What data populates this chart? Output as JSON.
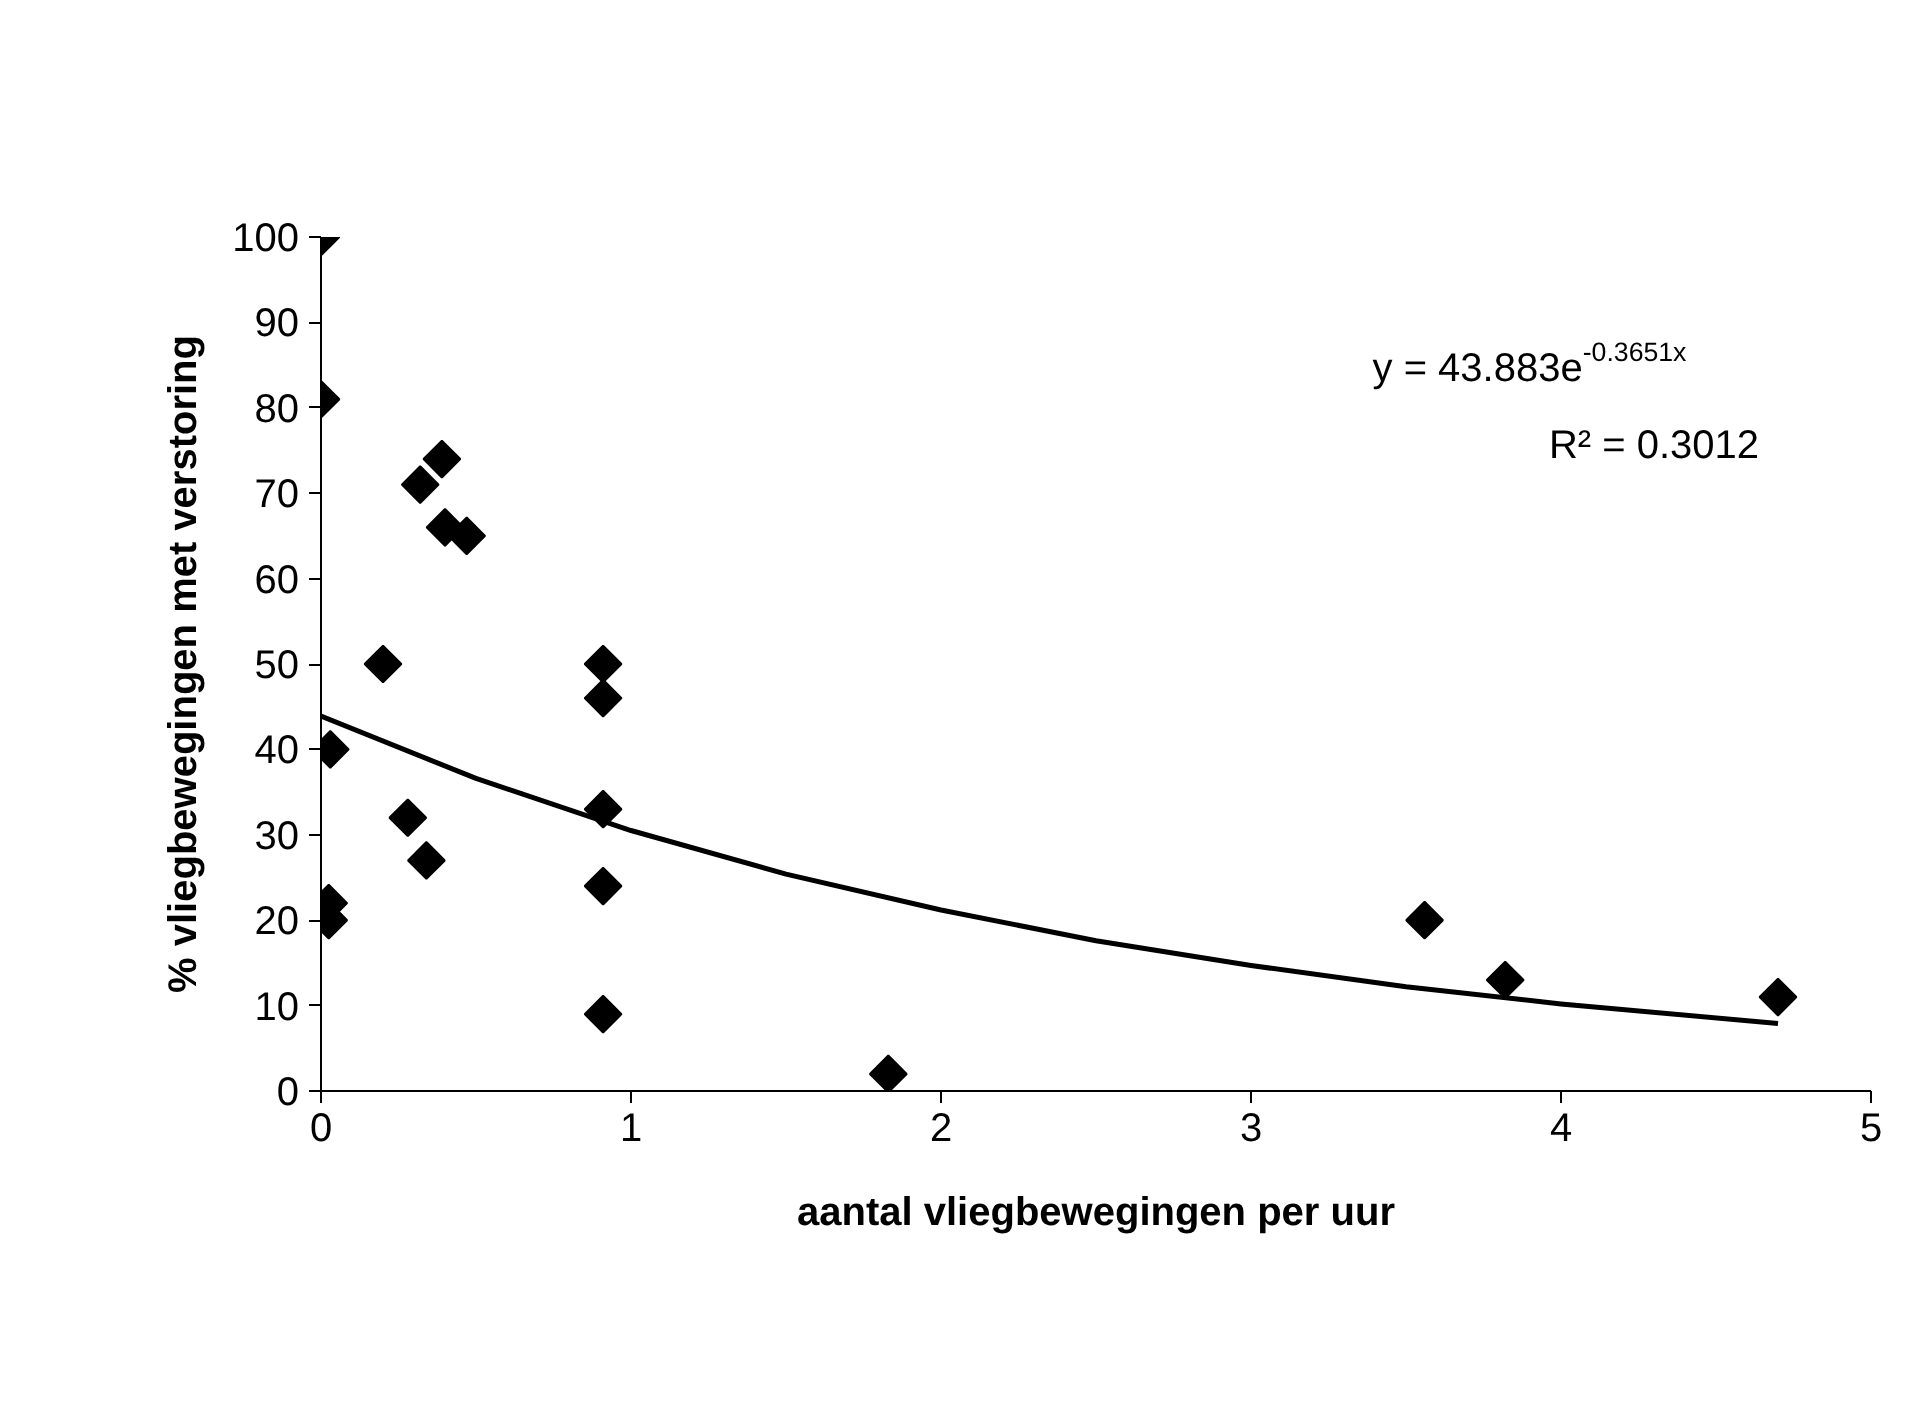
{
  "chart_data": {
    "type": "scatter",
    "xlabel": "aantal vliegbewegingen per uur",
    "ylabel": "% vliegbewegingen met verstoring",
    "xlim": [
      0,
      5
    ],
    "ylim": [
      0,
      100
    ],
    "xticks": [
      0,
      1,
      2,
      3,
      4,
      5
    ],
    "yticks": [
      0,
      10,
      20,
      30,
      40,
      50,
      60,
      70,
      80,
      90,
      100
    ],
    "grid": false,
    "marker": "diamond",
    "series": [
      {
        "color": "#000000",
        "x": [
          0,
          0,
          0.03,
          0.025,
          0.025,
          0.2,
          0.32,
          0.39,
          0.4,
          0.47,
          0.28,
          0.34,
          0.91,
          0.91,
          0.91,
          0.91,
          0.91,
          1.83,
          3.56,
          3.82,
          4.7
        ],
        "values": [
          100,
          81,
          40,
          22,
          20,
          50,
          71,
          74,
          66,
          65,
          32,
          27,
          50,
          46,
          33,
          24,
          9,
          2,
          20,
          13,
          11
        ]
      },
      {
        "type": "line",
        "color": "#000000",
        "line_style": "solid",
        "marker": "none",
        "x": [
          0,
          0.5,
          1,
          1.5,
          2,
          2.5,
          3,
          3.5,
          4,
          4.7
        ],
        "values": [
          43.9,
          36.6,
          30.5,
          25.4,
          21.2,
          17.6,
          14.7,
          12.2,
          10.2,
          7.9
        ]
      }
    ],
    "annotations": [
      "y = 43.883e$^{-0.3651x}$",
      "R² = 0.3012"
    ]
  }
}
